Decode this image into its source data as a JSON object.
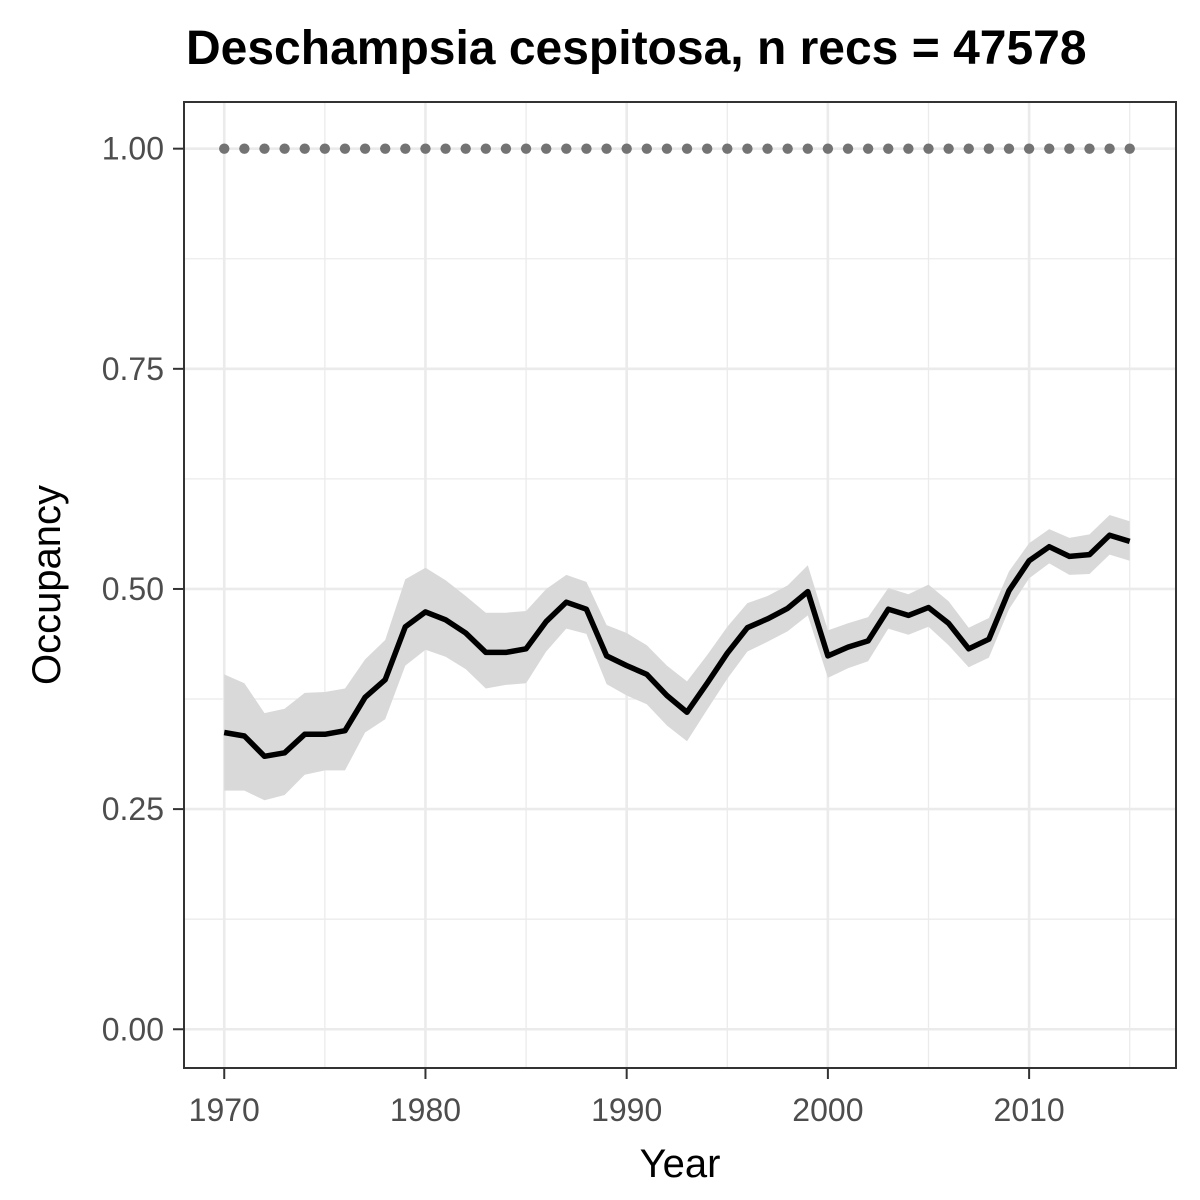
{
  "chart_data": {
    "type": "line",
    "title": "Deschampsia cespitosa, n recs = 47578",
    "xlabel": "Year",
    "ylabel": "Occupancy",
    "xlim": [
      1968,
      2017.3
    ],
    "ylim": [
      -0.044,
      1.053
    ],
    "x_ticks": [
      1970,
      1980,
      1990,
      2000,
      2010
    ],
    "x_tick_labels": [
      "1970",
      "1980",
      "1990",
      "2000",
      "2010"
    ],
    "y_ticks": [
      0,
      0.25,
      0.5,
      0.75,
      1.0
    ],
    "y_tick_labels": [
      "0.00",
      "0.25",
      "0.50",
      "0.75",
      "1.00"
    ],
    "grid": true,
    "legend": "none",
    "colors": {
      "line": "#000000",
      "ribbon": "#d9d9d9",
      "reference": "#737373",
      "grid": "#ebebeb",
      "panel_border": "#333333"
    },
    "x": [
      1970,
      1971,
      1972,
      1973,
      1974,
      1975,
      1976,
      1977,
      1978,
      1979,
      1980,
      1981,
      1982,
      1983,
      1984,
      1985,
      1986,
      1987,
      1988,
      1989,
      1990,
      1991,
      1992,
      1993,
      1994,
      1995,
      1996,
      1997,
      1998,
      1999,
      2000,
      2001,
      2002,
      2003,
      2004,
      2005,
      2006,
      2007,
      2008,
      2009,
      2010,
      2011,
      2012,
      2013,
      2014,
      2015
    ],
    "series": [
      {
        "values": [
          0.337,
          0.333,
          0.31,
          0.314,
          0.335,
          0.335,
          0.339,
          0.377,
          0.397,
          0.457,
          0.474,
          0.465,
          0.45,
          0.428,
          0.428,
          0.432,
          0.463,
          0.485,
          0.477,
          0.424,
          0.413,
          0.403,
          0.379,
          0.36,
          0.393,
          0.427,
          0.456,
          0.466,
          0.478,
          0.497,
          0.424,
          0.434,
          0.441,
          0.477,
          0.47,
          0.479,
          0.461,
          0.432,
          0.443,
          0.498,
          0.532,
          0.548,
          0.537,
          0.539,
          0.561,
          0.554
        ],
        "lower": [
          0.271,
          0.271,
          0.26,
          0.266,
          0.289,
          0.294,
          0.294,
          0.337,
          0.352,
          0.413,
          0.431,
          0.423,
          0.409,
          0.387,
          0.391,
          0.393,
          0.429,
          0.455,
          0.449,
          0.392,
          0.379,
          0.369,
          0.345,
          0.327,
          0.363,
          0.398,
          0.429,
          0.44,
          0.452,
          0.47,
          0.399,
          0.41,
          0.418,
          0.455,
          0.448,
          0.457,
          0.436,
          0.411,
          0.422,
          0.477,
          0.512,
          0.529,
          0.516,
          0.517,
          0.539,
          0.532
        ],
        "upper": [
          0.403,
          0.393,
          0.359,
          0.364,
          0.382,
          0.383,
          0.387,
          0.42,
          0.442,
          0.511,
          0.524,
          0.51,
          0.492,
          0.473,
          0.473,
          0.475,
          0.5,
          0.516,
          0.508,
          0.459,
          0.45,
          0.436,
          0.413,
          0.395,
          0.425,
          0.457,
          0.484,
          0.492,
          0.504,
          0.527,
          0.453,
          0.461,
          0.468,
          0.501,
          0.494,
          0.505,
          0.486,
          0.456,
          0.467,
          0.52,
          0.552,
          0.568,
          0.558,
          0.562,
          0.584,
          0.577
        ]
      }
    ],
    "reference": {
      "y": 1.0,
      "style": "dotted",
      "x_start": 1970,
      "x_end": 2015
    }
  }
}
